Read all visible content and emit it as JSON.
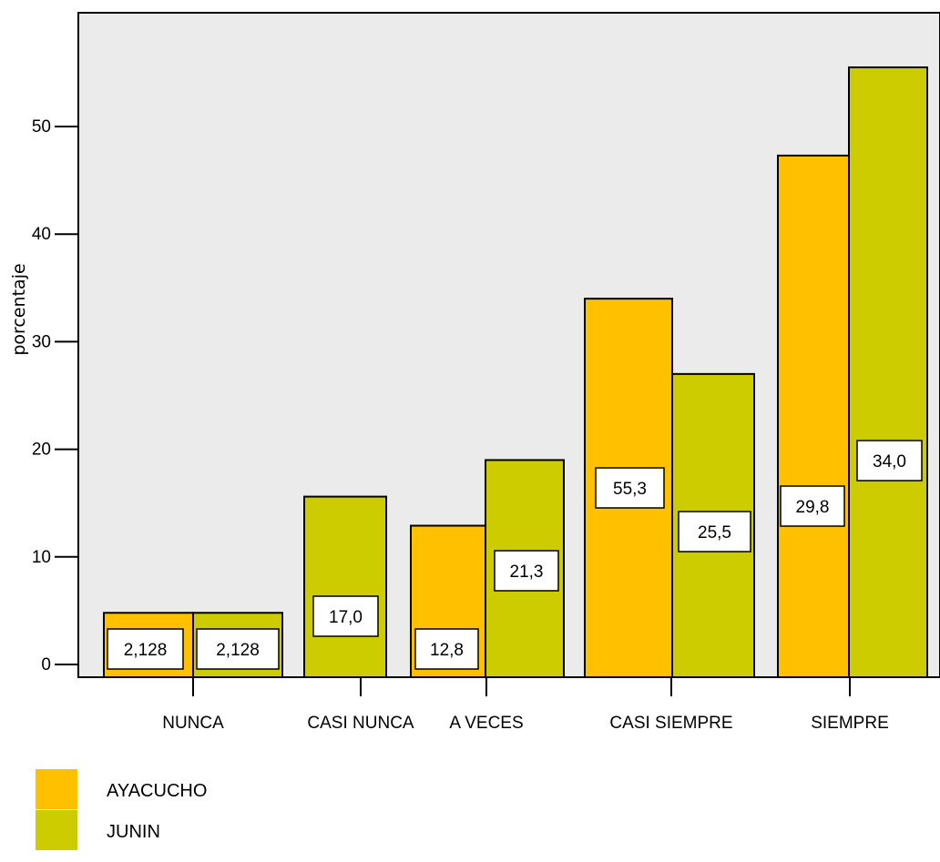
{
  "chart_data": {
    "type": "bar",
    "ylabel": "porcentaje",
    "xlabel": "",
    "title": "",
    "ylim": [
      0,
      60
    ],
    "yticks": [
      "0",
      "10",
      "20",
      "30",
      "40",
      "50"
    ],
    "categories": [
      "NUNCA",
      "CASI NUNCA",
      "A VECES",
      "CASI SIEMPRE",
      "SIEMPRE"
    ],
    "series": [
      {
        "name": "AYACUCHO",
        "color": "#ffc000",
        "values": [
          2.1,
          null,
          12.8,
          55.3,
          29.8
        ],
        "bar_heights": [
          4.8,
          null,
          12.9,
          34.0,
          47.3
        ],
        "labels": [
          "2,128",
          "",
          "12,8",
          "55,3",
          "29,8"
        ]
      },
      {
        "name": "JUNIN",
        "color": "#cccc00",
        "values": [
          2.1,
          17.0,
          21.3,
          25.5,
          34.0
        ],
        "bar_heights": [
          4.8,
          15.6,
          19.0,
          27.0,
          55.5
        ],
        "labels": [
          "2,128",
          "17,0",
          "21,3",
          "25,5",
          "34,0"
        ]
      }
    ],
    "legend_position": "bottom-left",
    "grid": false
  }
}
